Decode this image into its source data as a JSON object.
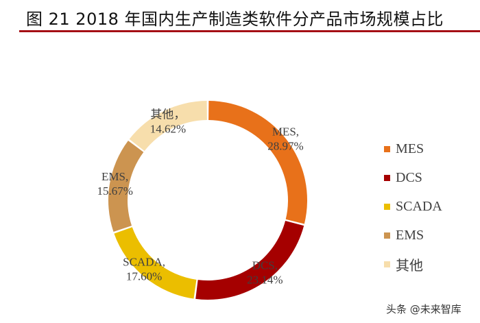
{
  "chart_data": {
    "type": "pie",
    "subtype": "donut",
    "title": "图 21 2018 年国内生产制造类软件分产品市场规模占比",
    "categories": [
      "MES",
      "DCS",
      "SCADA",
      "EMS",
      "其他"
    ],
    "values": [
      28.97,
      23.14,
      17.6,
      15.67,
      14.62
    ],
    "value_labels": [
      "28.97%",
      "23.14%",
      "17.60%",
      "15.67%",
      "14.62%"
    ],
    "colors": [
      "#e8711a",
      "#a50000",
      "#ebbe00",
      "#cc9450",
      "#f7deac"
    ],
    "unit": "%",
    "start_angle": "12 o'clock, clockwise",
    "legend": {
      "position": "right",
      "entries": [
        "MES",
        "DCS",
        "SCADA",
        "EMS",
        "其他"
      ]
    }
  },
  "watermark": "头条 @未来智库"
}
